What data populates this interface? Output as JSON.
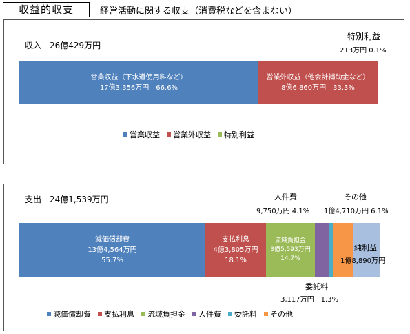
{
  "header": {
    "title": "収益的収支",
    "subtitle": "経営活動に関する収支（消費税などを含まない）"
  },
  "colors": {
    "blue": "#4f81bd",
    "red": "#c0504d",
    "green": "#9bbb59",
    "purple": "#8064a2",
    "teal": "#4bacc6",
    "orange": "#f79646",
    "lightblue": "#a8bfe0"
  },
  "income": {
    "heading": "収入　26億429万円",
    "tokubetsu_label": "特別利益",
    "tokubetsu_value": "213万円  0.1%",
    "segments": [
      {
        "line1": "営業収益（下水道使用料など）",
        "line2": "17億3,356万円　66.6%",
        "percent": 66.6
      },
      {
        "line1": "営業外収益（他会計補助金など）",
        "line2": "8億6,860万円　33.3%",
        "percent": 33.3
      },
      {
        "percent": 0.1
      }
    ],
    "legend": [
      "営業収益",
      "営業外収益",
      "特別利益"
    ]
  },
  "expense": {
    "heading": "支出　24億1,539万円",
    "jinkenhi_label": "人件費",
    "jinkenhi_value": "9,750万円 4.1%",
    "sonota_label": "その他",
    "sonota_value": "1億4,710万円 6.1%",
    "itaku_label": "委託料",
    "itaku_value": "3,117万円　1.3%",
    "segments": [
      {
        "line1": "減価償却費",
        "line2": "13億4,564万円",
        "line3": "55.7%",
        "percent": 55.7
      },
      {
        "line1": "支払利息",
        "line2": "4億3,805万円",
        "line3": "18.1%",
        "percent": 18.1
      },
      {
        "line1": "流域負担金",
        "line2": "3億5,593万円",
        "line3": "14.7%",
        "percent": 14.7
      },
      {
        "percent": 4.1
      },
      {
        "percent": 1.3
      },
      {
        "percent": 6.1
      }
    ],
    "net_profit_label": "純利益",
    "net_profit_value": "1億8,890万円",
    "legend": [
      "減価償却費",
      "支払利息",
      "流域負担金",
      "人件費",
      "委託料",
      "その他"
    ]
  }
}
